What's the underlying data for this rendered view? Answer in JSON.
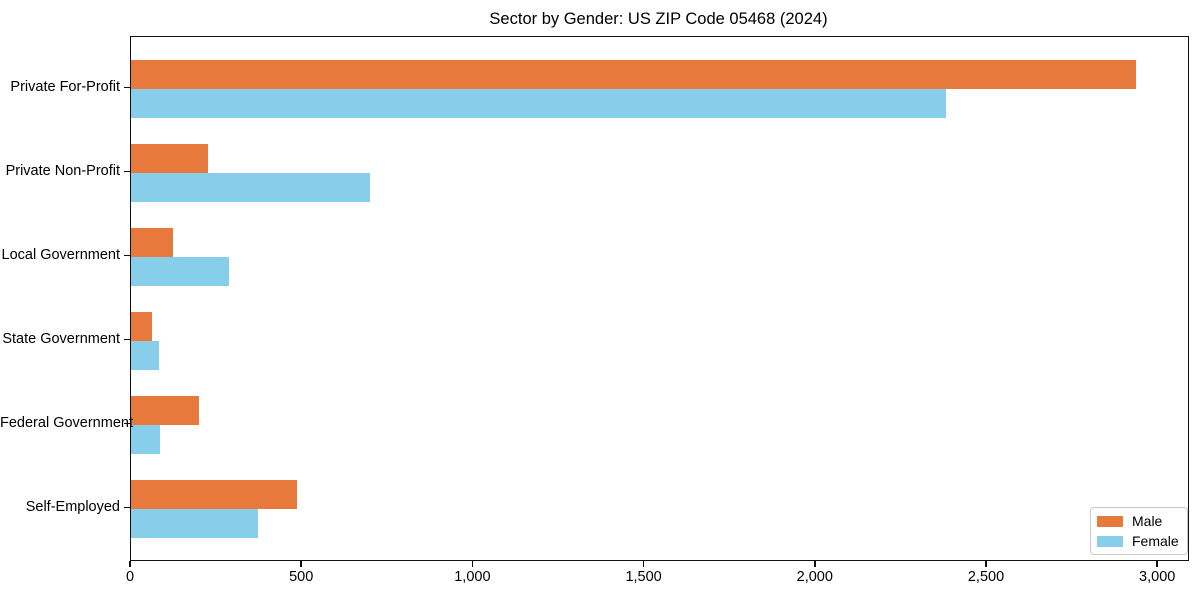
{
  "chart_data": {
    "type": "bar",
    "orientation": "horizontal",
    "title": "Sector by Gender: US ZIP Code 05468 (2024)",
    "categories": [
      "Private For-Profit",
      "Private Non-Profit",
      "Local Government",
      "State Government",
      "Federal Government",
      "Self-Employed"
    ],
    "series": [
      {
        "name": "Male",
        "color": "#e8793c",
        "values": [
          2934,
          224,
          122,
          60,
          198,
          484
        ]
      },
      {
        "name": "Female",
        "color": "#87ceeb",
        "values": [
          2380,
          697,
          285,
          81,
          84,
          370
        ]
      }
    ],
    "xlim": [
      0,
      3087
    ],
    "x_ticks": [
      0,
      500,
      1000,
      1500,
      2000,
      2500,
      3000
    ],
    "x_tick_labels": [
      "0",
      "500",
      "1,000",
      "1,500",
      "2,000",
      "2,500",
      "3,000"
    ],
    "xlabel": "",
    "ylabel": "",
    "grid": false,
    "legend_position": "lower right",
    "axis_color": "#111111"
  }
}
